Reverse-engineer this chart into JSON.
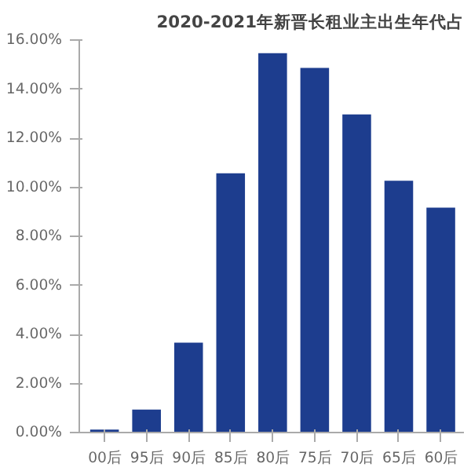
{
  "chart_data": {
    "type": "bar",
    "title": "2020-2021年新晋长租业主出生年代占",
    "categories": [
      "00后",
      "95后",
      "90后",
      "85后",
      "80后",
      "75后",
      "70后",
      "65后",
      "60后"
    ],
    "values": [
      0.15,
      0.97,
      3.7,
      10.6,
      15.5,
      14.9,
      13.0,
      10.3,
      9.2
    ],
    "color": "#1d3d8e",
    "ylim": [
      0,
      16
    ],
    "yticks": [
      {
        "value": 0,
        "label": "0.00%"
      },
      {
        "value": 2,
        "label": "2.00%"
      },
      {
        "value": 4,
        "label": "4.00%"
      },
      {
        "value": 6,
        "label": "6.00%"
      },
      {
        "value": 8,
        "label": "8.00%"
      },
      {
        "value": 10,
        "label": "10.00%"
      },
      {
        "value": 12,
        "label": "12.00%"
      },
      {
        "value": 14,
        "label": "14.00%"
      },
      {
        "value": 16,
        "label": "16.00%"
      }
    ],
    "grid": false
  }
}
